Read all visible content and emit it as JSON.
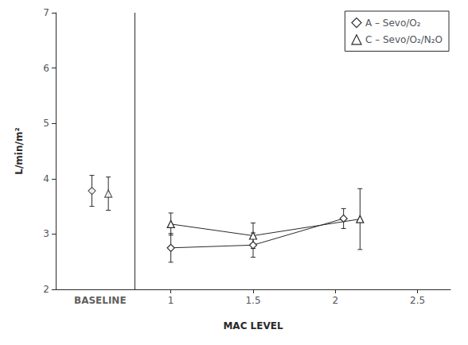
{
  "chart_data": {
    "type": "line",
    "xlabel": "MAC LEVEL",
    "ylabel": "L/min/m²",
    "xlim": [
      0.3,
      2.7
    ],
    "xticks": [
      1,
      1.5,
      2,
      2.5
    ],
    "ylim": [
      2,
      7
    ],
    "yticks": [
      2,
      3,
      4,
      5,
      6,
      7
    ],
    "grid": false,
    "legend": "upper right",
    "color": "#2a2a2a",
    "annotations": [
      {
        "text": "BASELINE",
        "x": 0.57
      },
      {
        "type": "vline",
        "x": 0.78
      }
    ],
    "series": [
      {
        "name": "A – Sevo/O₂",
        "marker": "diamond",
        "x": [
          1.0,
          1.5,
          2.05
        ],
        "values": [
          2.75,
          2.8,
          3.28
        ],
        "errors": [
          0.26,
          0.22,
          0.18
        ],
        "baseline_x": 0.52,
        "baseline_value": 3.78,
        "baseline_error": 0.28
      },
      {
        "name": "C – Sevo/O₂/N₂O",
        "marker": "triangle",
        "x": [
          1.0,
          1.5,
          2.15
        ],
        "values": [
          3.18,
          2.97,
          3.27
        ],
        "errors": [
          0.2,
          0.23,
          0.55
        ],
        "baseline_x": 0.62,
        "baseline_value": 3.73,
        "baseline_error": 0.3
      }
    ]
  }
}
